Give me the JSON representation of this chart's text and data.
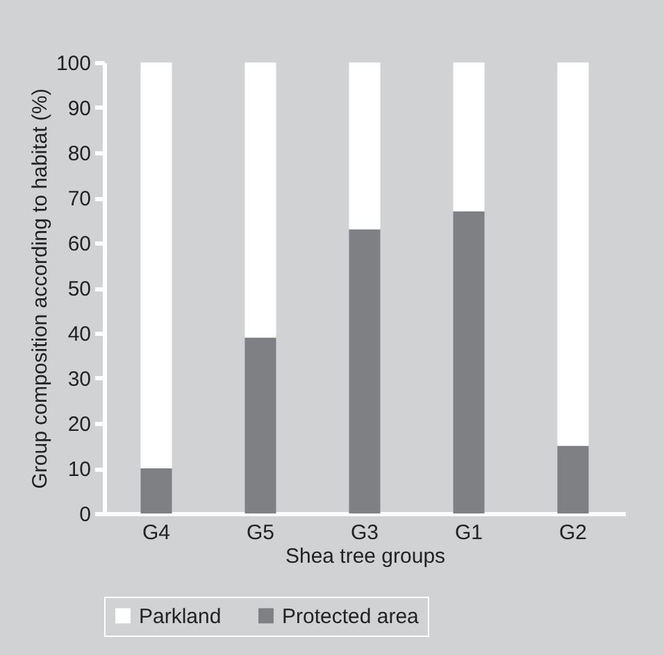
{
  "chart_data": {
    "type": "bar",
    "stacked": true,
    "xlabel": "Shea tree groups",
    "ylabel": "Group composition according to habitat (%)",
    "categories": [
      "G4",
      "G5",
      "G3",
      "G1",
      "G2"
    ],
    "series": [
      {
        "name": "Protected area",
        "color": "#7f8083",
        "values": [
          10,
          39,
          63,
          67,
          15
        ]
      },
      {
        "name": "Parkland",
        "color": "#ffffff",
        "values": [
          90,
          61,
          37,
          33,
          85
        ]
      }
    ],
    "ylim": [
      0,
      100
    ],
    "yticks": [
      0,
      10,
      20,
      30,
      40,
      50,
      60,
      70,
      80,
      90,
      100
    ],
    "grid": false,
    "legend": "bottom"
  }
}
